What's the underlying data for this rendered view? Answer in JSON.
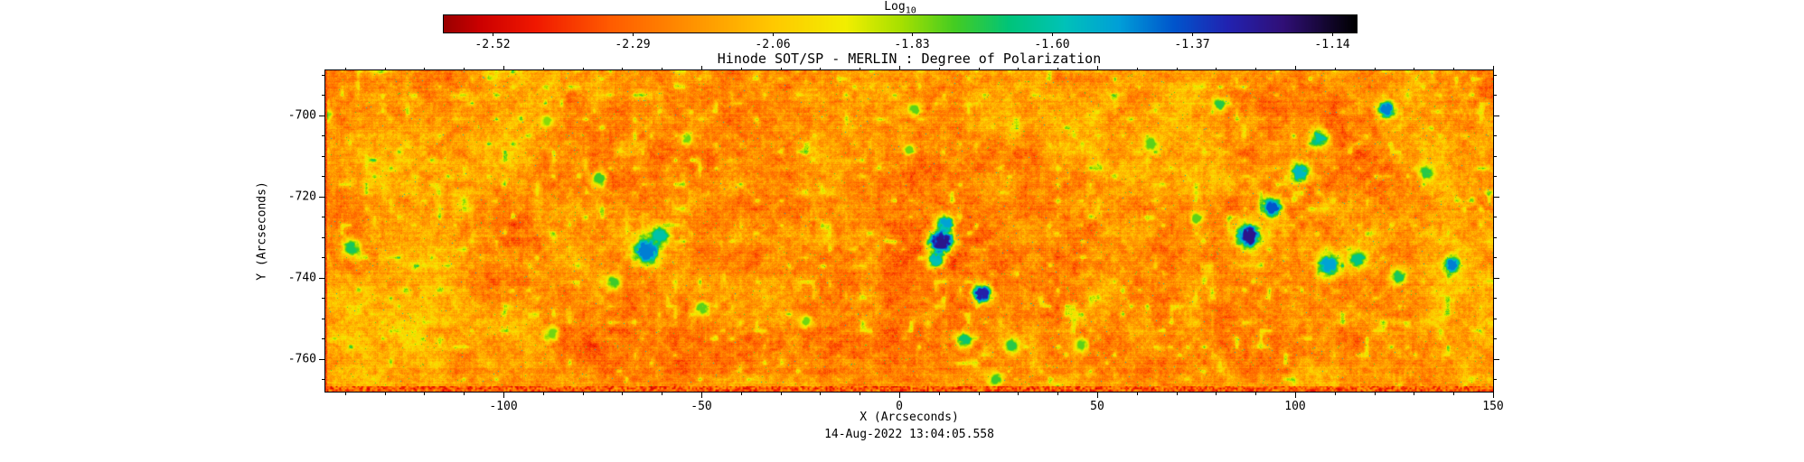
{
  "figure": {
    "title": "Hinode SOT/SP - MERLIN : Degree of Polarization",
    "xlabel": "X (Arcseconds)",
    "ylabel": "Y (Arcseconds)",
    "date_caption": "14-Aug-2022 13:04:05.558"
  },
  "colorbar": {
    "label": "Log",
    "label_sub": "10",
    "min": -2.6,
    "max": -1.1,
    "ticks": [
      -2.52,
      -2.29,
      -2.06,
      -1.83,
      -1.6,
      -1.37,
      -1.14
    ],
    "colormap": [
      [
        0.0,
        "#9b0000"
      ],
      [
        0.04,
        "#cc0000"
      ],
      [
        0.1,
        "#f01800"
      ],
      [
        0.18,
        "#ff5a00"
      ],
      [
        0.27,
        "#ff9100"
      ],
      [
        0.36,
        "#ffc800"
      ],
      [
        0.44,
        "#f2ee00"
      ],
      [
        0.5,
        "#a8e000"
      ],
      [
        0.56,
        "#44cc22"
      ],
      [
        0.62,
        "#00c47a"
      ],
      [
        0.68,
        "#00c2b8"
      ],
      [
        0.74,
        "#009fd8"
      ],
      [
        0.8,
        "#0055cc"
      ],
      [
        0.86,
        "#2222b0"
      ],
      [
        0.92,
        "#300f77"
      ],
      [
        1.0,
        "#000000"
      ]
    ]
  },
  "chart_data": {
    "type": "heatmap",
    "title": "Hinode SOT/SP - MERLIN : Degree of Polarization",
    "xlabel": "X (Arcseconds)",
    "ylabel": "Y (Arcseconds)",
    "value_label": "Log10 degree of polarization",
    "value_range": [
      -2.6,
      -1.1
    ],
    "background_value_range": [
      -2.52,
      -1.88
    ],
    "xlim": [
      -145,
      150
    ],
    "ylim": [
      -768,
      -689
    ],
    "x_major_ticks": [
      -100,
      -50,
      0,
      50,
      100,
      150
    ],
    "x_minor_step": 10,
    "y_major_ticks": [
      -700,
      -720,
      -740,
      -760
    ],
    "y_minor_step": 5,
    "grid": false,
    "legend": "top horizontal colorbar",
    "features": {
      "description": "Noisy red-orange-yellow solar granulation background with scattered small green speckles and localized cyan-blue high-polarization patches; saturated red artifact stripe along the bottom edge of the map.",
      "hotspots": [
        {
          "x": -138.6,
          "y": -732.5,
          "v": -1.7,
          "r": 1.4
        },
        {
          "x": -145.0,
          "y": -699.9,
          "v": -1.75,
          "r": 1.0
        },
        {
          "x": -89.1,
          "y": -701.4,
          "v": -1.82,
          "r": 0.9
        },
        {
          "x": -87.7,
          "y": -753.6,
          "v": -1.8,
          "r": 1.1
        },
        {
          "x": -76.0,
          "y": -715.4,
          "v": -1.75,
          "r": 1.2
        },
        {
          "x": -72.4,
          "y": -741.0,
          "v": -1.75,
          "r": 1.2
        },
        {
          "x": -63.9,
          "y": -733.2,
          "v": -1.45,
          "r": 2.2
        },
        {
          "x": -60.5,
          "y": -729.5,
          "v": -1.6,
          "r": 1.5
        },
        {
          "x": -53.7,
          "y": -705.6,
          "v": -1.8,
          "r": 1.0
        },
        {
          "x": -50.0,
          "y": -747.4,
          "v": -1.78,
          "r": 1.2
        },
        {
          "x": -23.7,
          "y": -750.7,
          "v": -1.8,
          "r": 1.0
        },
        {
          "x": 2.5,
          "y": -708.3,
          "v": -1.8,
          "r": 1.0
        },
        {
          "x": 3.9,
          "y": -698.5,
          "v": -1.78,
          "r": 1.1
        },
        {
          "x": 9.0,
          "y": -735.5,
          "v": -1.6,
          "r": 1.3
        },
        {
          "x": 10.5,
          "y": -730.9,
          "v": -1.25,
          "r": 2.0
        },
        {
          "x": 11.5,
          "y": -726.5,
          "v": -1.5,
          "r": 1.4
        },
        {
          "x": 16.4,
          "y": -755.1,
          "v": -1.68,
          "r": 1.4
        },
        {
          "x": 20.8,
          "y": -743.8,
          "v": -1.3,
          "r": 1.5
        },
        {
          "x": 24.2,
          "y": -764.9,
          "v": -1.75,
          "r": 1.2
        },
        {
          "x": 28.5,
          "y": -756.5,
          "v": -1.72,
          "r": 1.2
        },
        {
          "x": 45.9,
          "y": -756.5,
          "v": -1.78,
          "r": 1.2
        },
        {
          "x": 63.5,
          "y": -707.0,
          "v": -1.78,
          "r": 1.2
        },
        {
          "x": 75.1,
          "y": -725.4,
          "v": -1.78,
          "r": 1.1
        },
        {
          "x": 80.8,
          "y": -697.2,
          "v": -1.72,
          "r": 1.2
        },
        {
          "x": 88.1,
          "y": -729.6,
          "v": -1.25,
          "r": 1.9
        },
        {
          "x": 94.1,
          "y": -722.5,
          "v": -1.4,
          "r": 1.6
        },
        {
          "x": 101.1,
          "y": -714.1,
          "v": -1.55,
          "r": 1.6
        },
        {
          "x": 106.1,
          "y": -705.6,
          "v": -1.6,
          "r": 1.5
        },
        {
          "x": 108.4,
          "y": -736.7,
          "v": -1.5,
          "r": 1.8
        },
        {
          "x": 115.7,
          "y": -735.2,
          "v": -1.65,
          "r": 1.5
        },
        {
          "x": 123.0,
          "y": -698.5,
          "v": -1.45,
          "r": 1.4
        },
        {
          "x": 126.0,
          "y": -739.6,
          "v": -1.7,
          "r": 1.3
        },
        {
          "x": 133.0,
          "y": -714.0,
          "v": -1.72,
          "r": 1.2
        },
        {
          "x": 139.5,
          "y": -736.7,
          "v": -1.45,
          "r": 1.3
        }
      ],
      "bottom_artifact": "saturated red vertical stripe band along bottom edge"
    }
  }
}
